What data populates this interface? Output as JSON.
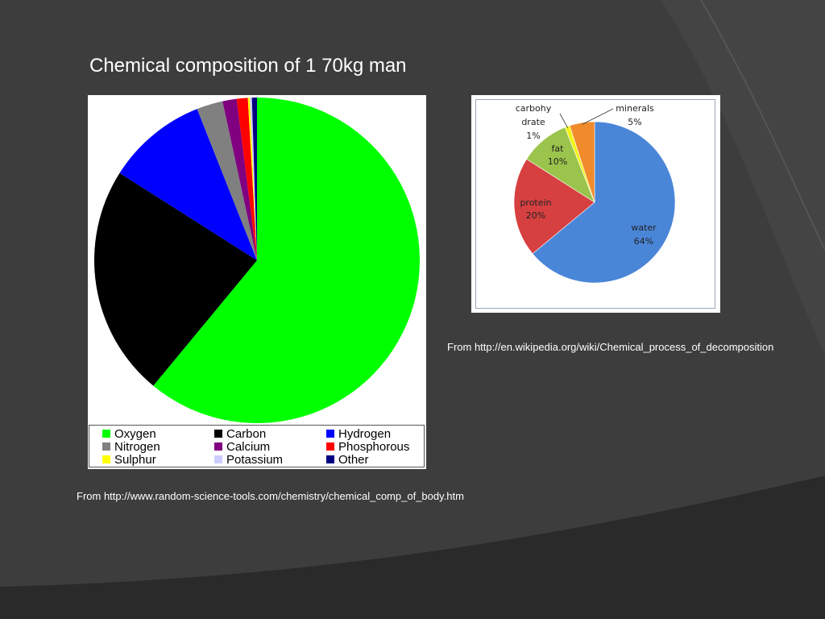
{
  "slide": {
    "title": "Chemical composition of 1 70kg man",
    "source_left": "From http://www.random-science-tools.com/chemistry/chemical_comp_of_body.htm",
    "source_right": "From http://en.wikipedia.org/wiki/Chemical_process_of_decomposition",
    "colors": {
      "background": "#3d3d3d",
      "text": "#ffffff"
    }
  },
  "chart_data": [
    {
      "type": "pie",
      "title": "",
      "categories": [
        "Oxygen",
        "Carbon",
        "Hydrogen",
        "Nitrogen",
        "Calcium",
        "Phosphorous",
        "Sulphur",
        "Potassium",
        "Other"
      ],
      "values": [
        61,
        23,
        10,
        2.6,
        1.4,
        1.1,
        0.2,
        0.2,
        0.5
      ],
      "colors": [
        "#00ff00",
        "#000000",
        "#0000ff",
        "#808080",
        "#800080",
        "#ff0000",
        "#ffff00",
        "#ccccff",
        "#000080"
      ],
      "legend_position": "bottom"
    },
    {
      "type": "pie",
      "title": "",
      "categories": [
        "water",
        "protein",
        "fat",
        "carbohy drate",
        "minerals"
      ],
      "values": [
        64,
        20,
        10,
        1,
        5
      ],
      "labels": [
        "64%",
        "20%",
        "10%",
        "1%",
        "5%"
      ],
      "colors": [
        "#4a86d8",
        "#d64040",
        "#9bc44c",
        "#f2f21a",
        "#f08a2a"
      ],
      "legend_position": "none"
    }
  ]
}
